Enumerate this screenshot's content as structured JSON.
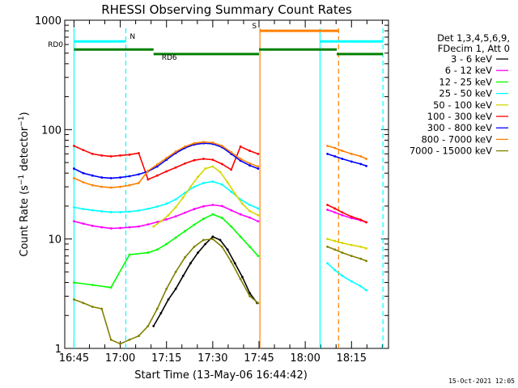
{
  "chart_data": {
    "type": "line",
    "title": "RHESSI Observing Summary Count Rates",
    "xlabel": "Start Time (13-May-06 16:44:42)",
    "ylabel": "Count Rate (s⁻¹ detector⁻¹)",
    "ylabel_main": "Count Rate (s",
    "ylabel_mid": " detector",
    "ylabel_end": ")",
    "ylabel_sup": "−1",
    "yscale": "log",
    "ylim": [
      1,
      1000
    ],
    "xlim": [
      16.7,
      18.45
    ],
    "x_unit": "hour",
    "y_ticks": [
      {
        "value": 1,
        "label": "1"
      },
      {
        "value": 10,
        "label": "10"
      },
      {
        "value": 100,
        "label": "100"
      },
      {
        "value": 1000,
        "label": "1000"
      }
    ],
    "x_ticks": [
      {
        "value": 16.75,
        "label": "16:45"
      },
      {
        "value": 17.0,
        "label": "17:00"
      },
      {
        "value": 17.25,
        "label": "17:15"
      },
      {
        "value": 17.5,
        "label": "17:30"
      },
      {
        "value": 17.75,
        "label": "17:45"
      },
      {
        "value": 18.0,
        "label": "18:00"
      },
      {
        "value": 18.25,
        "label": "18:15"
      }
    ],
    "legend_header": [
      "Det 1,3,4,5,6,9,",
      "FDecim 1, Att 0"
    ],
    "legend_placement": "right",
    "gaps": [
      [
        17.745,
        18.11
      ]
    ],
    "series": [
      {
        "name": "3 - 6 keV",
        "color": "#000000",
        "x": [
          17.18,
          17.22,
          17.26,
          17.3,
          17.34,
          17.38,
          17.42,
          17.46,
          17.5,
          17.54,
          17.58,
          17.62,
          17.66,
          17.7,
          17.74
        ],
        "y": [
          1.6,
          2.1,
          2.8,
          3.5,
          4.6,
          6.0,
          7.5,
          9.0,
          10.5,
          9.8,
          8.0,
          6.0,
          4.5,
          3.2,
          2.6
        ]
      },
      {
        "name": "6 - 12 keV",
        "color": "#ff00ff",
        "x": [
          16.75,
          16.8,
          16.85,
          16.9,
          16.95,
          17.0,
          17.05,
          17.1,
          17.15,
          17.2,
          17.25,
          17.3,
          17.35,
          17.4,
          17.45,
          17.5,
          17.55,
          17.6,
          17.65,
          17.7,
          17.745,
          18.12,
          18.16,
          18.2,
          18.25,
          18.3,
          18.33
        ],
        "y": [
          14.5,
          13.8,
          13.2,
          12.8,
          12.5,
          12.6,
          12.8,
          13.0,
          13.6,
          14.3,
          15.1,
          16.1,
          17.4,
          18.8,
          19.9,
          20.5,
          20.0,
          18.3,
          16.8,
          15.7,
          14.5,
          18.5,
          17.5,
          16.5,
          15.5,
          14.8,
          14.2
        ]
      },
      {
        "name": "12 - 25 keV",
        "color": "#00ff00",
        "x": [
          16.75,
          16.85,
          16.95,
          17.05,
          17.15,
          17.2,
          17.25,
          17.3,
          17.35,
          17.4,
          17.45,
          17.5,
          17.55,
          17.6,
          17.65,
          17.7,
          17.745
        ],
        "y": [
          4.0,
          3.8,
          3.6,
          7.2,
          7.5,
          8.0,
          9.0,
          10.3,
          11.8,
          13.5,
          15.3,
          16.8,
          15.6,
          13.0,
          10.5,
          8.5,
          7.0
        ]
      },
      {
        "name": "25 - 50 keV",
        "color": "#00ffff",
        "x": [
          16.75,
          16.8,
          16.85,
          16.9,
          16.95,
          17.0,
          17.05,
          17.1,
          17.15,
          17.2,
          17.25,
          17.3,
          17.35,
          17.4,
          17.45,
          17.5,
          17.55,
          17.6,
          17.65,
          17.7,
          17.745,
          18.12,
          18.16,
          18.2,
          18.25,
          18.3,
          18.33
        ],
        "y": [
          19.5,
          18.8,
          18.3,
          17.9,
          17.6,
          17.6,
          17.8,
          18.2,
          18.9,
          19.8,
          21.0,
          23.0,
          26.5,
          30.0,
          32.5,
          33.5,
          31.5,
          27.0,
          23.0,
          20.5,
          19.0,
          6.0,
          5.2,
          4.6,
          4.1,
          3.7,
          3.4
        ]
      },
      {
        "name": "50 - 100 keV",
        "color": "#d6d600",
        "x": [
          17.18,
          17.22,
          17.26,
          17.3,
          17.34,
          17.38,
          17.42,
          17.46,
          17.5,
          17.54,
          17.58,
          17.62,
          17.66,
          17.7,
          17.745,
          18.12,
          18.16,
          18.2,
          18.25,
          18.3,
          18.33
        ],
        "y": [
          13.0,
          14.5,
          16.5,
          19.5,
          24.0,
          30.0,
          37.0,
          44.0,
          46.0,
          41.0,
          33.0,
          26.0,
          21.0,
          18.0,
          16.5,
          10.0,
          9.6,
          9.2,
          8.8,
          8.5,
          8.2
        ]
      },
      {
        "name": "100 - 300 keV",
        "color": "#ff0000",
        "x": [
          16.75,
          16.8,
          16.85,
          16.9,
          16.95,
          17.0,
          17.05,
          17.1,
          17.15,
          17.2,
          17.25,
          17.3,
          17.35,
          17.4,
          17.45,
          17.5,
          17.55,
          17.6,
          17.65,
          17.7,
          17.745,
          18.12,
          18.16,
          18.2,
          18.25,
          18.3,
          18.33
        ],
        "y": [
          71.0,
          65.0,
          60.0,
          58.0,
          57.0,
          58.0,
          59.0,
          61.0,
          35.0,
          38.0,
          41.5,
          45.0,
          49.0,
          52.5,
          54.0,
          53.0,
          48.5,
          43.0,
          70.0,
          64.0,
          60.0,
          20.5,
          19.0,
          17.5,
          16.0,
          15.0,
          14.2
        ]
      },
      {
        "name": "300 - 800 keV",
        "color": "#0000ff",
        "x": [
          16.75,
          16.8,
          16.85,
          16.9,
          16.95,
          17.0,
          17.05,
          17.1,
          17.15,
          17.2,
          17.25,
          17.3,
          17.35,
          17.4,
          17.45,
          17.5,
          17.55,
          17.6,
          17.65,
          17.7,
          17.745,
          18.12,
          18.16,
          18.2,
          18.25,
          18.3,
          18.33
        ],
        "y": [
          44.0,
          40.0,
          38.0,
          36.5,
          36.0,
          36.5,
          37.5,
          39.0,
          41.5,
          46.0,
          53.0,
          61.0,
          68.0,
          73.0,
          75.0,
          74.0,
          69.0,
          60.0,
          52.0,
          47.0,
          44.0,
          60.0,
          57.0,
          54.0,
          51.0,
          48.5,
          46.5
        ]
      },
      {
        "name": "800 - 7000 keV",
        "color": "#ff8000",
        "x": [
          16.75,
          16.8,
          16.85,
          16.9,
          16.95,
          17.0,
          17.05,
          17.1,
          17.15,
          17.2,
          17.25,
          17.3,
          17.35,
          17.4,
          17.45,
          17.5,
          17.55,
          17.6,
          17.65,
          17.7,
          17.745,
          18.12,
          18.16,
          18.2,
          18.25,
          18.3,
          18.33
        ],
        "y": [
          36.0,
          33.0,
          31.0,
          30.0,
          29.5,
          30.0,
          31.0,
          32.5,
          42.0,
          48.0,
          55.0,
          63.0,
          70.0,
          75.0,
          77.0,
          76.0,
          71.0,
          62.0,
          54.0,
          49.0,
          46.0,
          71.0,
          68.0,
          64.0,
          60.0,
          57.0,
          54.0
        ]
      },
      {
        "name": "7000 - 15000 keV",
        "color": "#808000",
        "x": [
          16.75,
          16.8,
          16.85,
          16.9,
          16.95,
          17.0,
          17.05,
          17.1,
          17.15,
          17.2,
          17.25,
          17.3,
          17.35,
          17.4,
          17.45,
          17.5,
          17.55,
          17.6,
          17.65,
          17.7,
          17.745,
          18.12,
          18.16,
          18.2,
          18.25,
          18.3,
          18.33
        ],
        "y": [
          2.8,
          2.6,
          2.4,
          2.3,
          1.2,
          1.1,
          1.2,
          1.3,
          1.6,
          2.3,
          3.5,
          5.0,
          6.8,
          8.5,
          9.8,
          10.0,
          8.5,
          6.2,
          4.3,
          3.0,
          2.6,
          8.5,
          8.0,
          7.5,
          7.0,
          6.6,
          6.3
        ]
      }
    ],
    "flag_bars": [
      {
        "label": "RD0",
        "color": "#008000",
        "level": 540,
        "segments": [
          [
            16.75,
            17.18
          ],
          [
            17.75,
            18.17
          ]
        ]
      },
      {
        "label": "RD6",
        "color": "#008000",
        "level": 490,
        "segments": [
          [
            17.18,
            17.75
          ],
          [
            18.17,
            18.42
          ]
        ]
      },
      {
        "label": "N",
        "color": "#00ffff",
        "level": 640,
        "segments": [
          [
            16.75,
            17.03
          ],
          [
            18.08,
            18.42
          ]
        ]
      },
      {
        "label": "S",
        "color": "#ff8000",
        "level": 800,
        "segments": [
          [
            17.755,
            18.18
          ]
        ]
      }
    ],
    "event_lines": [
      {
        "x": 17.03,
        "color": "#00ffff",
        "style": "dashed"
      },
      {
        "x": 17.755,
        "color": "#ff8000",
        "style": "solid"
      },
      {
        "x": 18.08,
        "color": "#00ffff",
        "style": "solid"
      },
      {
        "x": 18.18,
        "color": "#ff8000",
        "style": "dashed"
      },
      {
        "x": 18.42,
        "color": "#00ffff",
        "style": "dashed"
      },
      {
        "x": 16.75,
        "color": "#00ffff",
        "style": "solid"
      }
    ],
    "footer": "15-Oct-2021 12:05"
  }
}
